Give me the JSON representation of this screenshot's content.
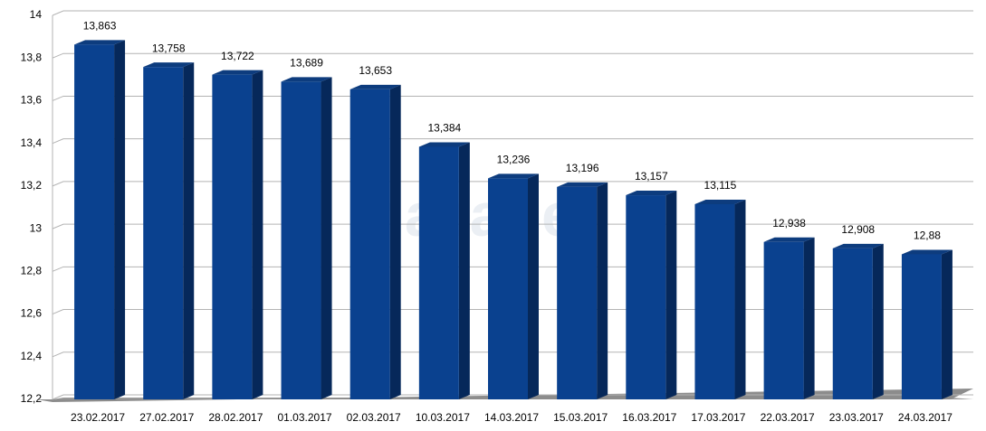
{
  "chart_data": {
    "type": "bar",
    "watermark": "nazabel",
    "categories": [
      "23.02.2017",
      "27.02.2017",
      "28.02.2017",
      "01.03.2017",
      "02.03.2017",
      "10.03.2017",
      "14.03.2017",
      "15.03.2017",
      "16.03.2017",
      "17.03.2017",
      "22.03.2017",
      "23.03.2017",
      "24.03.2017"
    ],
    "values": [
      13.863,
      13.758,
      13.722,
      13.689,
      13.653,
      13.384,
      13.236,
      13.196,
      13.157,
      13.115,
      12.938,
      12.908,
      12.88
    ],
    "value_labels": [
      "13,863",
      "13,758",
      "13,722",
      "13,689",
      "13,653",
      "13,384",
      "13,236",
      "13,196",
      "13,157",
      "13,115",
      "12,938",
      "12,908",
      "12,88"
    ],
    "color": "#0a418f",
    "ylim": [
      12.2,
      14
    ],
    "yticks": [
      {
        "value": 12.2,
        "label": "12,2"
      },
      {
        "value": 12.4,
        "label": "12,4"
      },
      {
        "value": 12.6,
        "label": "12,6"
      },
      {
        "value": 12.8,
        "label": "12,8"
      },
      13,
      {
        "value": 13.2,
        "label": "13,2"
      },
      {
        "value": 13.4,
        "label": "13,4"
      },
      {
        "value": 13.6,
        "label": "13,6"
      },
      {
        "value": 13.8,
        "label": "13,8"
      },
      14
    ],
    "grid": true
  }
}
